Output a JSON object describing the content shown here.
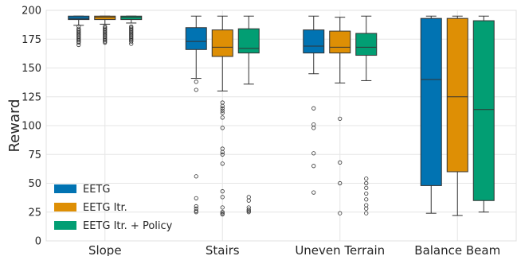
{
  "chart_data": {
    "type": "boxplot",
    "ylabel": "Reward",
    "ylim": [
      0,
      200
    ],
    "yticks": [
      0,
      25,
      50,
      75,
      100,
      125,
      150,
      175,
      200
    ],
    "grid": true,
    "legend_position": "bottom-left",
    "categories": [
      "Slope",
      "Stairs",
      "Uneven Terrain",
      "Balance Beam"
    ],
    "series": [
      {
        "name": "EETG",
        "color": "#0173b2",
        "boxes": [
          {
            "whisker_low": 187,
            "q1": 192,
            "median": 193,
            "q3": 195,
            "whisker_high": 195,
            "outliers": [
              186,
              184,
              183,
              182,
              181,
              180,
              179,
              178,
              177,
              176,
              175,
              174,
              173,
              172,
              170
            ]
          },
          {
            "whisker_low": 141,
            "q1": 166,
            "median": 173,
            "q3": 185,
            "whisker_high": 195,
            "outliers": [
              138,
              131,
              56,
              37,
              30,
              28,
              26,
              25
            ]
          },
          {
            "whisker_low": 145,
            "q1": 163,
            "median": 169,
            "q3": 183,
            "whisker_high": 195,
            "outliers": [
              115,
              101,
              98,
              76,
              65,
              42
            ]
          },
          {
            "whisker_low": 24,
            "q1": 48,
            "median": 140,
            "q3": 193,
            "whisker_high": 195,
            "outliers": []
          }
        ]
      },
      {
        "name": "EETG Itr.",
        "color": "#de8f05",
        "boxes": [
          {
            "whisker_low": 188,
            "q1": 192,
            "median": 194,
            "q3": 195,
            "whisker_high": 195,
            "outliers": [
              186,
              185,
              184,
              183,
              182,
              181,
              180,
              179,
              178,
              177,
              176,
              175,
              174,
              173,
              172
            ]
          },
          {
            "whisker_low": 130,
            "q1": 160,
            "median": 168,
            "q3": 183,
            "whisker_high": 195,
            "outliers": [
              120,
              117,
              115,
              113,
              111,
              107,
              98,
              80,
              77,
              75,
              67,
              43,
              38,
              29,
              25,
              24,
              23
            ]
          },
          {
            "whisker_low": 137,
            "q1": 163,
            "median": 168,
            "q3": 182,
            "whisker_high": 194,
            "outliers": [
              106,
              68,
              50,
              24
            ]
          },
          {
            "whisker_low": 22,
            "q1": 60,
            "median": 125,
            "q3": 193,
            "whisker_high": 195,
            "outliers": []
          }
        ]
      },
      {
        "name": "EETG Itr. + Policy",
        "color": "#029e73",
        "boxes": [
          {
            "whisker_low": 189,
            "q1": 192,
            "median": 194,
            "q3": 195,
            "whisker_high": 195,
            "outliers": [
              186,
              185,
              184,
              183,
              182,
              181,
              180,
              179,
              178,
              177,
              176,
              175,
              174,
              173,
              171
            ]
          },
          {
            "whisker_low": 136,
            "q1": 163,
            "median": 167,
            "q3": 184,
            "whisker_high": 195,
            "outliers": [
              38,
              35,
              29,
              27,
              26,
              25
            ]
          },
          {
            "whisker_low": 139,
            "q1": 161,
            "median": 168,
            "q3": 180,
            "whisker_high": 195,
            "outliers": [
              54,
              50,
              46,
              41,
              36,
              31,
              28,
              24
            ]
          },
          {
            "whisker_low": 25,
            "q1": 35,
            "median": 114,
            "q3": 191,
            "whisker_high": 195,
            "outliers": []
          }
        ]
      }
    ]
  }
}
